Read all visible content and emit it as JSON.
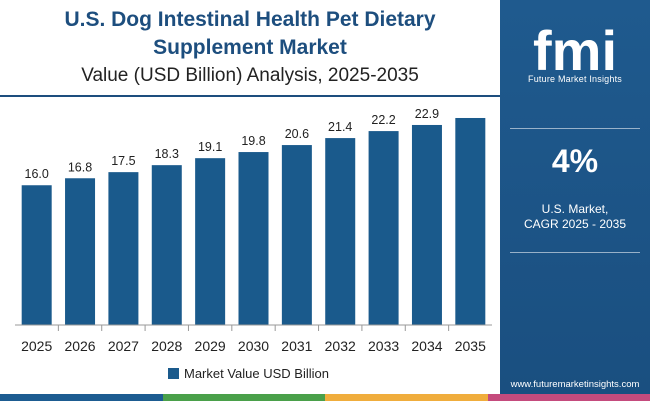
{
  "header": {
    "title_line1": "U.S. Dog Intestinal Health Pet Dietary",
    "title_line2": "Supplement Market",
    "subtitle": "Value (USD Billion) Analysis, 2025-2035"
  },
  "legend": {
    "label": "Market Value USD Billion"
  },
  "sidebar": {
    "logo_text": "fmi",
    "tagline": "Future Market Insights",
    "cagr_value": "4%",
    "cagr_line1": "U.S. Market,",
    "cagr_line2": "CAGR 2025 - 2035",
    "website": "www.futuremarketinsights.com"
  },
  "colors": {
    "bar": "#1a5a8c",
    "title": "#1d4e7e",
    "sidebar": "#1f5a8e",
    "strip": [
      "#1d5c91",
      "#4aa04a",
      "#f0ad3c",
      "#c54b7d"
    ]
  },
  "chart_data": {
    "type": "bar",
    "title": "U.S. Dog Intestinal Health Pet Dietary Supplement Market",
    "subtitle": "Value (USD Billion) Analysis, 2025-2035",
    "xlabel": "",
    "ylabel": "",
    "categories": [
      "2025",
      "2026",
      "2027",
      "2028",
      "2029",
      "2030",
      "2031",
      "2032",
      "2033",
      "2034",
      "2035"
    ],
    "series": [
      {
        "name": "Market Value USD Billion",
        "values": [
          16.0,
          16.8,
          17.5,
          18.3,
          19.1,
          19.8,
          20.6,
          21.4,
          22.2,
          22.9,
          23.7
        ],
        "labels": [
          "16.0",
          "16.8",
          "17.5",
          "18.3",
          "19.1",
          "19.8",
          "20.6",
          "21.4",
          "22.2",
          "22.9",
          ""
        ]
      }
    ],
    "ylim": [
      0,
      24.5
    ],
    "grid": false,
    "legend_position": "bottom"
  }
}
